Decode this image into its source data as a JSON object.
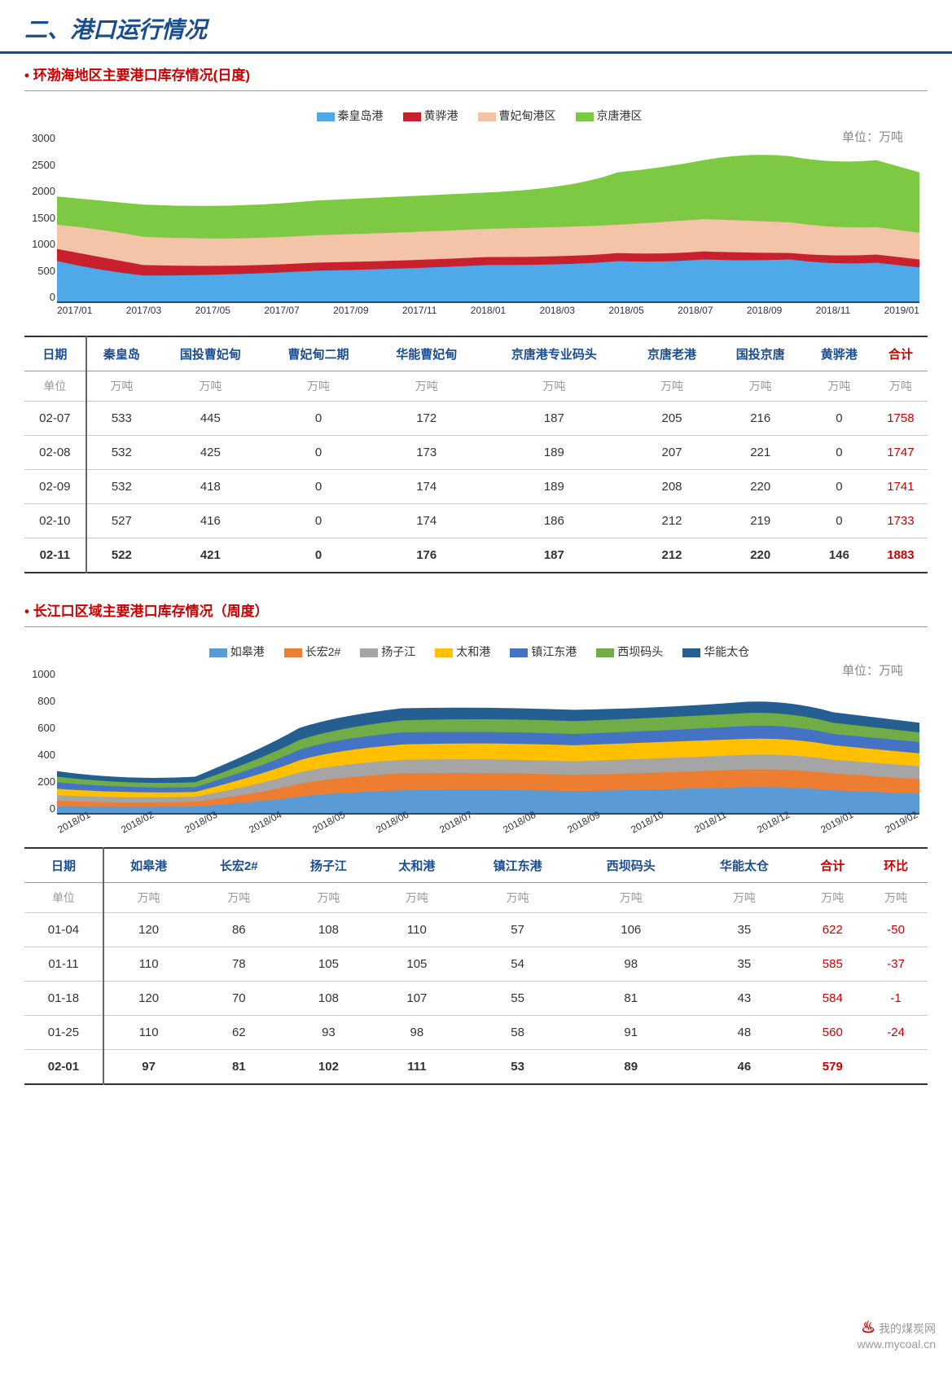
{
  "header_title": "二、港口运行情况",
  "section1": {
    "title": "环渤海地区主要港口库存情况(日度)",
    "legend": [
      {
        "label": "秦皇岛港",
        "color": "#4fa8e8"
      },
      {
        "label": "黄骅港",
        "color": "#c8202c"
      },
      {
        "label": "曹妃甸港区",
        "color": "#f4c4a8"
      },
      {
        "label": "京唐港区",
        "color": "#7dc943"
      }
    ],
    "unit_label": "单位：万吨",
    "chart": {
      "type": "area",
      "ylim": [
        0,
        3000
      ],
      "yticks": [
        0,
        500,
        1000,
        1500,
        2000,
        2500,
        3000
      ],
      "xticks": [
        "2017/01",
        "2017/03",
        "2017/05",
        "2017/07",
        "2017/09",
        "2017/11",
        "2018/01",
        "2018/03",
        "2018/05",
        "2018/07",
        "2018/09",
        "2018/11",
        "2019/01"
      ],
      "colors": {
        "qhd": "#4fa8e8",
        "hh": "#c8202c",
        "cfd": "#f4c4a8",
        "jt": "#7dc943"
      },
      "grid_color": "#e0e0e0",
      "border": "#1a4d8f"
    },
    "table": {
      "columns": [
        "日期",
        "秦皇岛",
        "国投曹妃甸",
        "曹妃甸二期",
        "华能曹妃甸",
        "京唐港专业码头",
        "京唐老港",
        "国投京唐",
        "黄骅港",
        "合计"
      ],
      "unit": "万吨",
      "rows": [
        [
          "02-07",
          "533",
          "445",
          "0",
          "172",
          "187",
          "205",
          "216",
          "0",
          "1758"
        ],
        [
          "02-08",
          "532",
          "425",
          "0",
          "173",
          "189",
          "207",
          "221",
          "0",
          "1747"
        ],
        [
          "02-09",
          "532",
          "418",
          "0",
          "174",
          "189",
          "208",
          "220",
          "0",
          "1741"
        ],
        [
          "02-10",
          "527",
          "416",
          "0",
          "174",
          "186",
          "212",
          "219",
          "0",
          "1733"
        ],
        [
          "02-11",
          "522",
          "421",
          "0",
          "176",
          "187",
          "212",
          "220",
          "146",
          "1883"
        ]
      ]
    }
  },
  "section2": {
    "title": "长江口区域主要港口库存情况（周度）",
    "legend": [
      {
        "label": "如皋港",
        "color": "#5b9bd5"
      },
      {
        "label": "长宏2#",
        "color": "#ed7d31"
      },
      {
        "label": "扬子江",
        "color": "#a5a5a5"
      },
      {
        "label": "太和港",
        "color": "#ffc000"
      },
      {
        "label": "镇江东港",
        "color": "#4472c4"
      },
      {
        "label": "西坝码头",
        "color": "#70ad47"
      },
      {
        "label": "华能太仓",
        "color": "#255e91"
      }
    ],
    "unit_label": "单位：万吨",
    "chart": {
      "type": "area",
      "ylim": [
        0,
        1000
      ],
      "yticks": [
        0,
        200,
        400,
        600,
        800,
        1000
      ],
      "xticks": [
        "2018/01",
        "2018/02",
        "2018/03",
        "2018/04",
        "2018/05",
        "2018/06",
        "2018/07",
        "2018/08",
        "2018/09",
        "2018/10",
        "2018/11",
        "2018/12",
        "2019/01",
        "2019/02"
      ],
      "grid_color": "#e0e0e0",
      "border": "#1a4d8f"
    },
    "table": {
      "columns": [
        "日期",
        "如皋港",
        "长宏2#",
        "扬子江",
        "太和港",
        "镇江东港",
        "西坝码头",
        "华能太仓",
        "合计",
        "环比"
      ],
      "unit": "万吨",
      "rows": [
        [
          "01-04",
          "120",
          "86",
          "108",
          "110",
          "57",
          "106",
          "35",
          "622",
          "-50"
        ],
        [
          "01-11",
          "110",
          "78",
          "105",
          "105",
          "54",
          "98",
          "35",
          "585",
          "-37"
        ],
        [
          "01-18",
          "120",
          "70",
          "108",
          "107",
          "55",
          "81",
          "43",
          "584",
          "-1"
        ],
        [
          "01-25",
          "110",
          "62",
          "93",
          "98",
          "58",
          "91",
          "48",
          "560",
          "-24"
        ],
        [
          "02-01",
          "97",
          "81",
          "102",
          "111",
          "53",
          "89",
          "46",
          "579",
          ""
        ]
      ]
    }
  },
  "watermark": {
    "site": "我的煤炭网",
    "url": "www.mycoal.cn"
  }
}
